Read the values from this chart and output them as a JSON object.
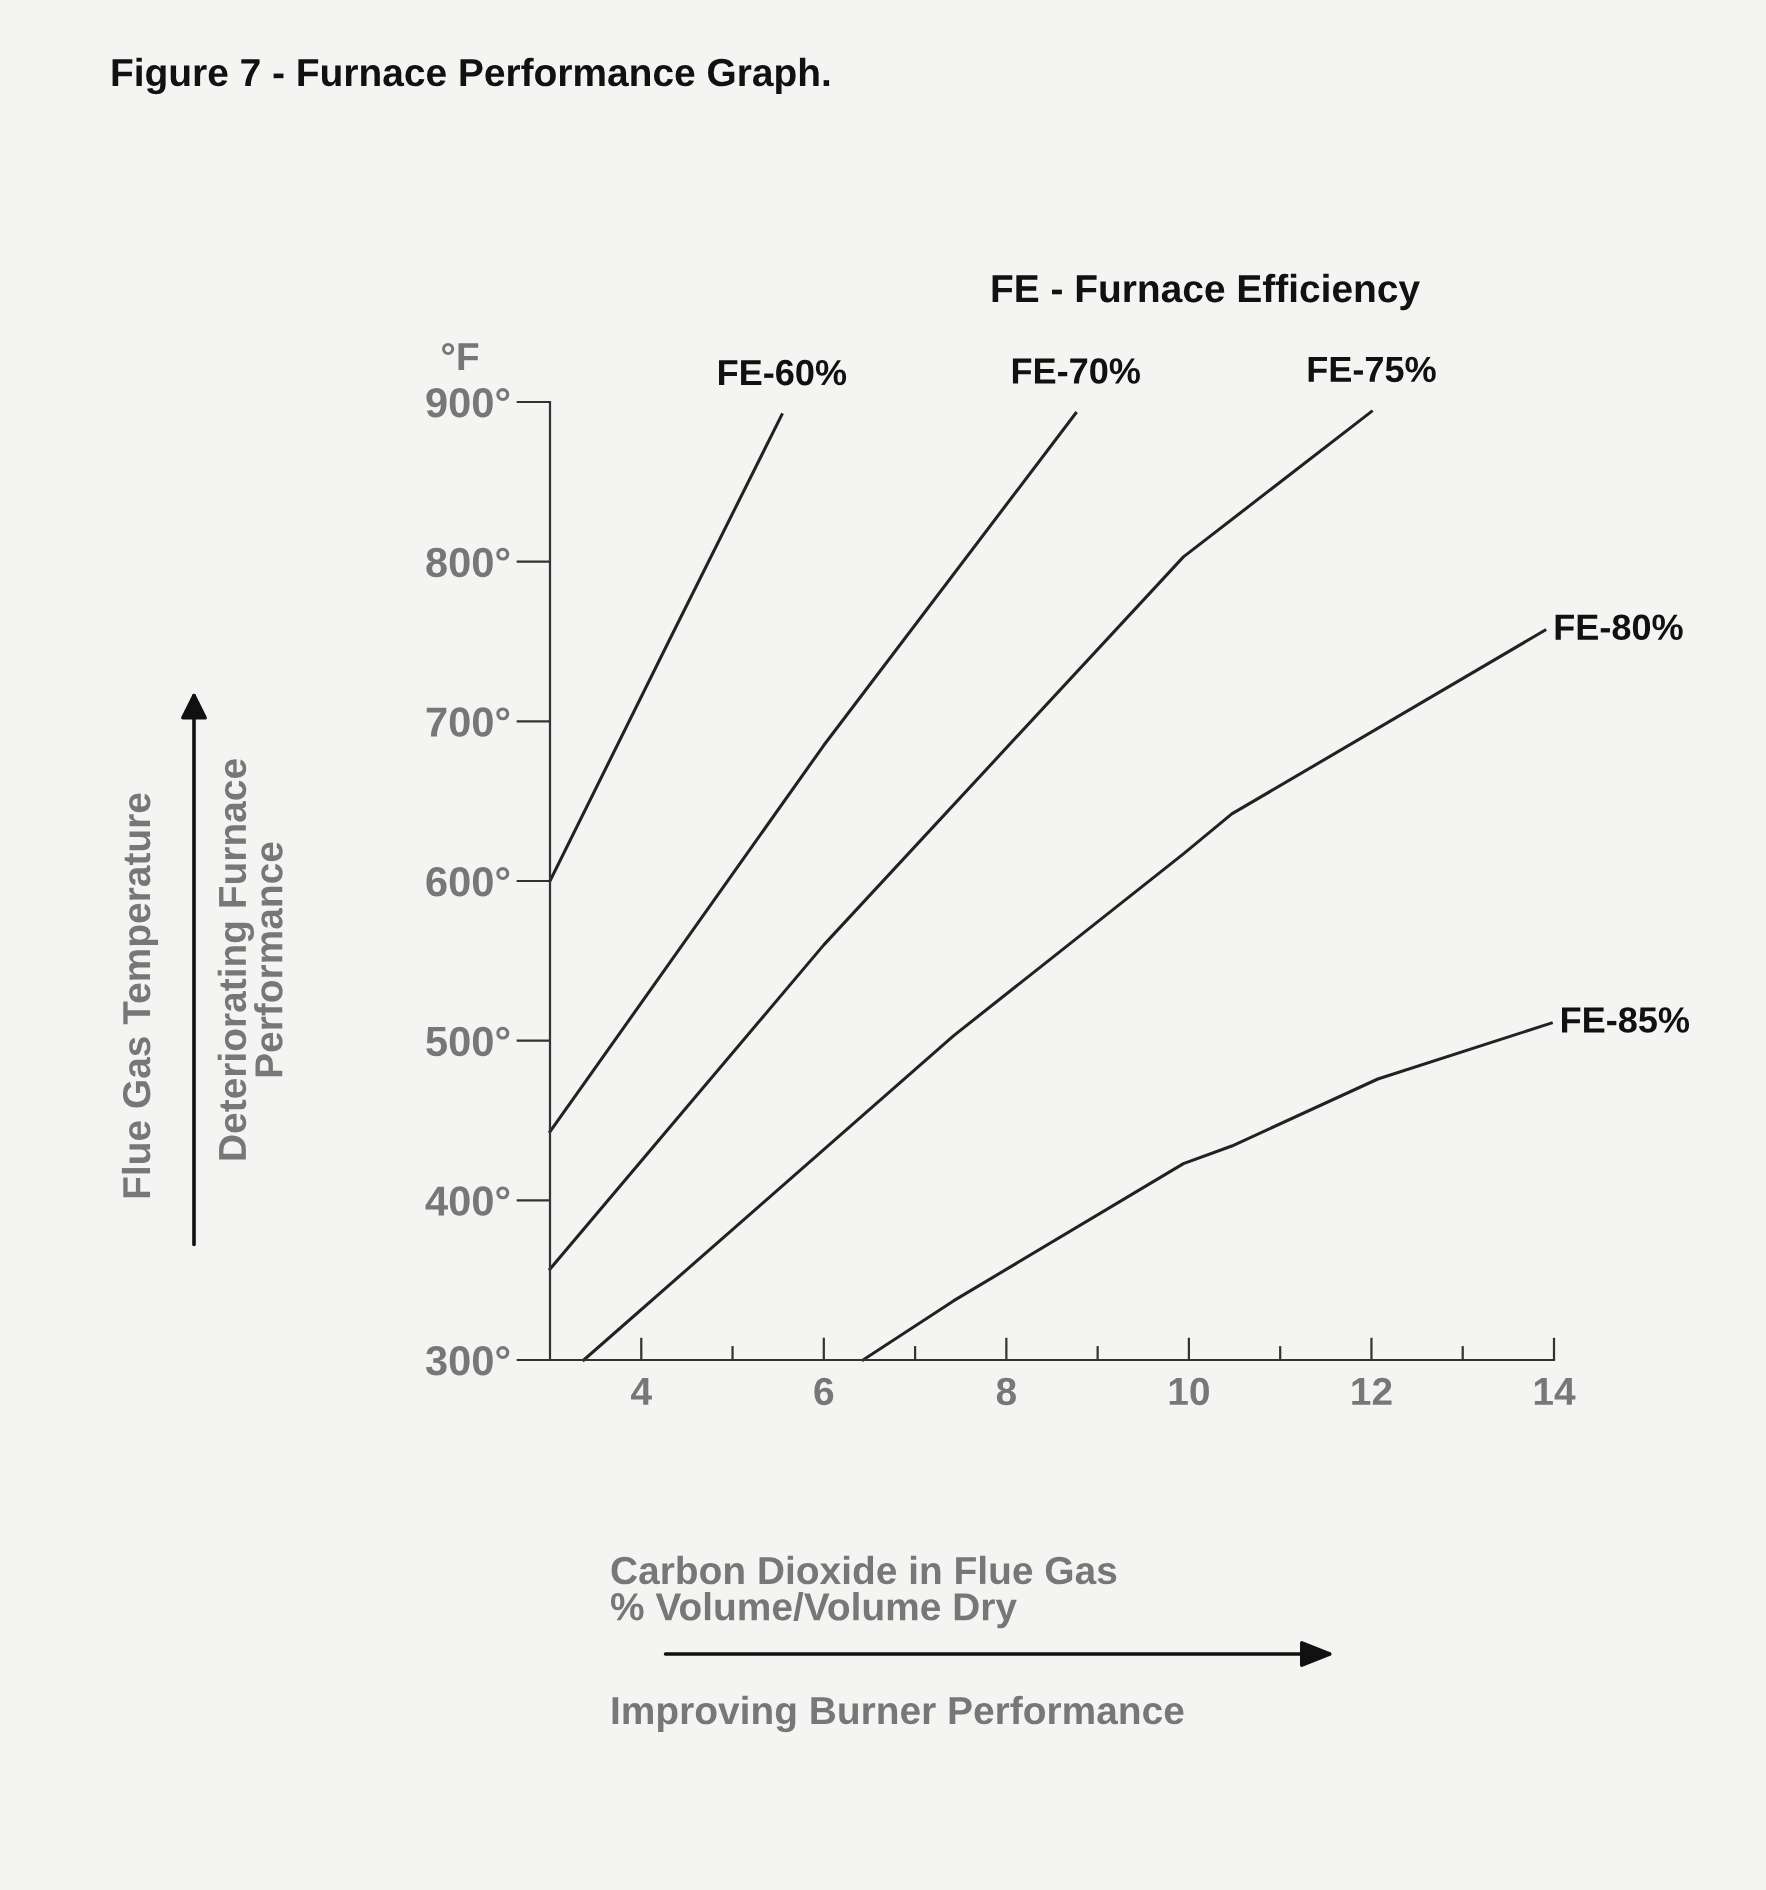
{
  "chart_data": {
    "type": "line",
    "title": "Figure 7 - Furnace Performance Graph.",
    "xlabel": "Carbon Dioxide in Flue Gas\n% Volume/Volume Dry",
    "annotations": [
      "FE - Furnace Efficiency",
      "°F",
      "Deteriorating Furnace\nPerformance",
      "Improving Burner Performance",
      "Flue Gas Temperature"
    ],
    "xlim": [
      3,
      14
    ],
    "ylim": [
      300,
      900
    ],
    "xticks": [
      4,
      {
        "value": 5,
        "label": null
      },
      6,
      {
        "value": 7,
        "label": null
      },
      8,
      {
        "value": 9,
        "label": null
      },
      10,
      {
        "value": 11,
        "label": null
      },
      12,
      {
        "value": 13,
        "label": null
      },
      14
    ],
    "yticks": [
      {
        "value": 300,
        "label": "300°"
      },
      {
        "value": 400,
        "label": "400°"
      },
      {
        "value": 500,
        "label": "500°"
      },
      {
        "value": 600,
        "label": "600°"
      },
      {
        "value": 700,
        "label": "700°"
      },
      {
        "value": 800,
        "label": "800°"
      },
      {
        "value": 900,
        "label": "900°"
      }
    ],
    "grid": false,
    "marker": "none",
    "line_style": "solid",
    "series": [
      {
        "name": "FE-60%",
        "color": "#222222",
        "x": [
          3,
          4.3,
          5.54
        ],
        "values": [
          600,
          750,
          892
        ]
      },
      {
        "name": "FE-70%",
        "color": "#222222",
        "x": [
          3,
          6,
          8.76
        ],
        "values": [
          443,
          685,
          893
        ]
      },
      {
        "name": "FE-75%",
        "color": "#222222",
        "x": [
          3,
          6,
          9.94,
          12.0
        ],
        "values": [
          357,
          560,
          803,
          894
        ]
      },
      {
        "name": "FE-80%",
        "color": "#222222",
        "x": [
          3.37,
          7.42,
          9.94,
          10.47,
          13.9
        ],
        "values": [
          300,
          503,
          617,
          642,
          757
        ]
      },
      {
        "name": "FE-85%",
        "color": "#222222",
        "x": [
          6.43,
          7.42,
          9.94,
          10.47,
          12.07,
          13.97
        ],
        "values": [
          300,
          337,
          423,
          434,
          476,
          511
        ]
      }
    ]
  }
}
